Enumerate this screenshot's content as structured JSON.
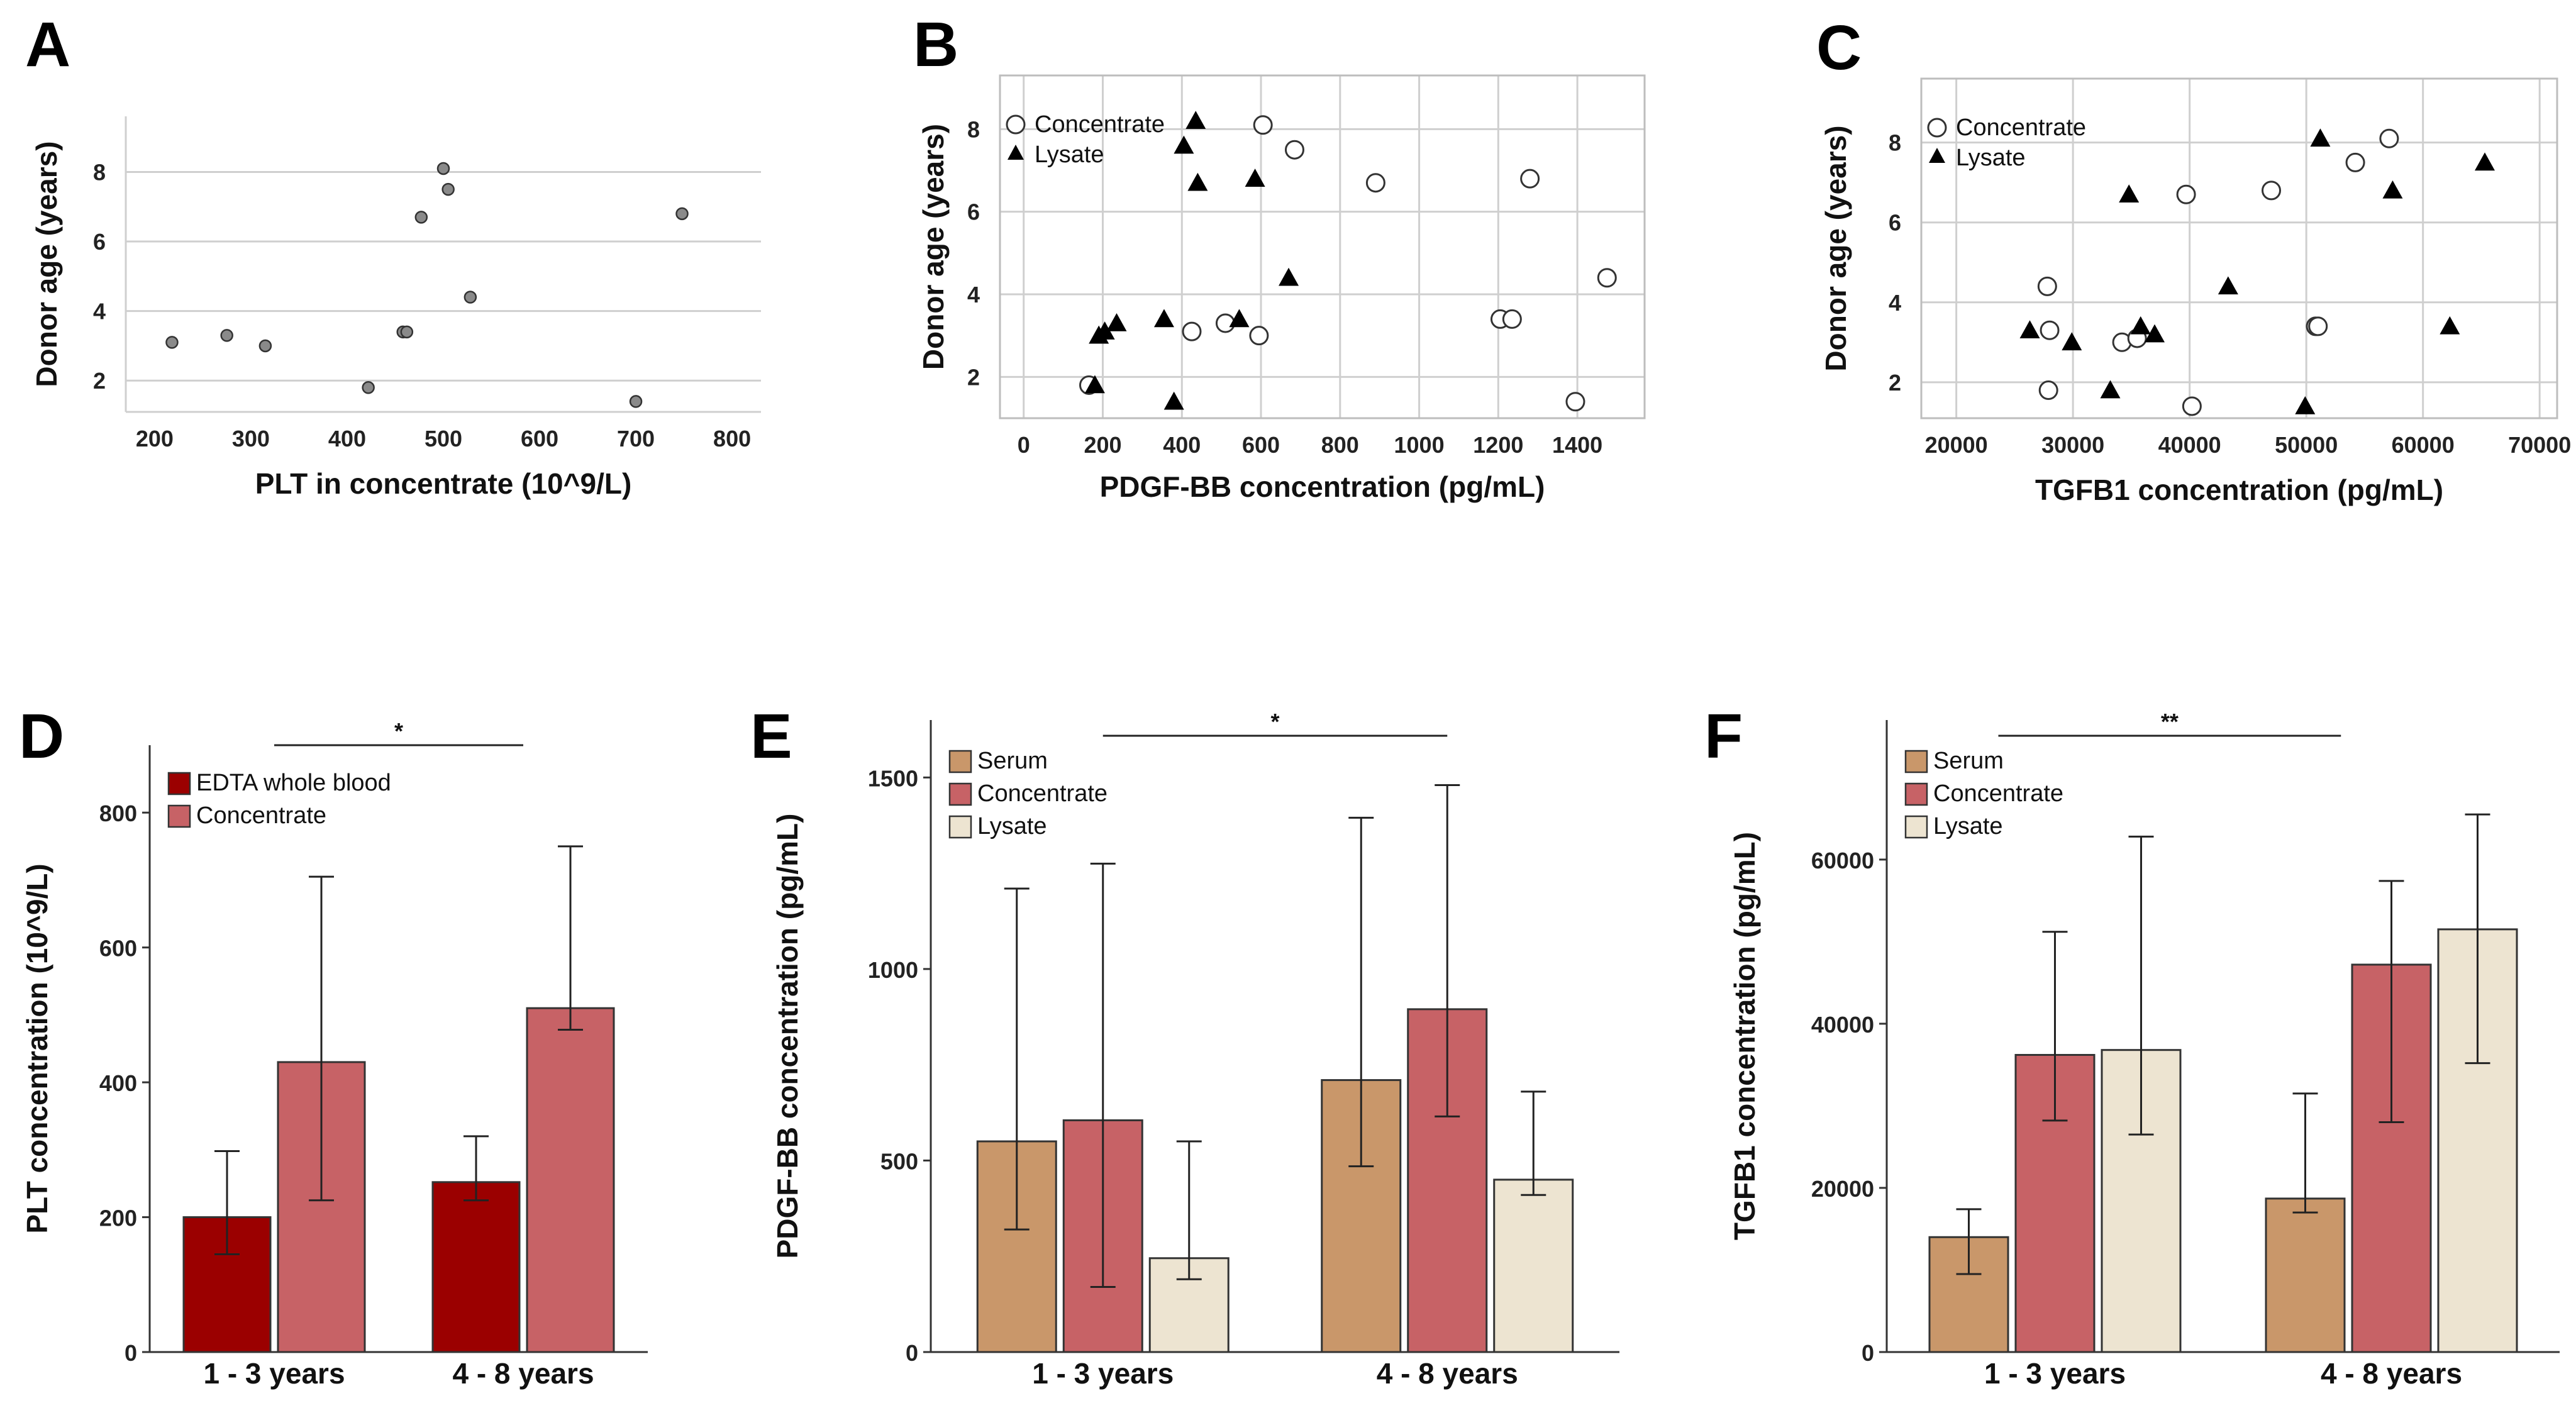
{
  "panels": {
    "A": {
      "letter": "A",
      "chart_data": {
        "type": "scatter",
        "xlabel": "PLT in concentrate (10^9/L)",
        "ylabel": "Donor age (years)",
        "xlim": [
          170,
          830
        ],
        "ylim": [
          1.1,
          9.6
        ],
        "xticks": [
          200,
          300,
          400,
          500,
          600,
          700,
          800
        ],
        "yticks": [
          2,
          4,
          6,
          8
        ],
        "series": [
          {
            "name": "Concentrate",
            "points": [
              [
                218,
                3.1
              ],
              [
                275,
                3.3
              ],
              [
                315,
                3.0
              ],
              [
                422,
                1.8
              ],
              [
                458,
                3.4
              ],
              [
                462,
                3.4
              ],
              [
                477,
                6.7
              ],
              [
                500,
                8.1
              ],
              [
                505,
                7.5
              ],
              [
                528,
                4.4
              ],
              [
                700,
                1.4
              ],
              [
                748,
                6.8
              ]
            ]
          }
        ]
      }
    },
    "B": {
      "letter": "B",
      "chart_data": {
        "type": "scatter",
        "xlabel": "PDGF-BB concentration (pg/mL)",
        "ylabel": "Donor age (years)",
        "xlim": [
          -60,
          1570
        ],
        "ylim": [
          1.0,
          9.3
        ],
        "xticks": [
          0,
          200,
          400,
          600,
          800,
          1000,
          1200,
          1400
        ],
        "yticks": [
          2,
          4,
          6,
          8
        ],
        "legend": [
          "Concentrate",
          "Lysate"
        ],
        "series": [
          {
            "name": "Concentrate",
            "marker": "open-circle",
            "points": [
              [
                165,
                1.8
              ],
              [
                425,
                3.1
              ],
              [
                510,
                3.3
              ],
              [
                595,
                3.0
              ],
              [
                605,
                8.1
              ],
              [
                685,
                7.5
              ],
              [
                890,
                6.7
              ],
              [
                1205,
                3.4
              ],
              [
                1235,
                3.4
              ],
              [
                1280,
                6.8
              ],
              [
                1395,
                1.4
              ],
              [
                1475,
                4.4
              ]
            ]
          },
          {
            "name": "Lysate",
            "marker": "filled-triangle",
            "points": [
              [
                180,
                1.8
              ],
              [
                190,
                3.0
              ],
              [
                205,
                3.1
              ],
              [
                235,
                3.3
              ],
              [
                355,
                3.4
              ],
              [
                380,
                1.4
              ],
              [
                405,
                7.6
              ],
              [
                435,
                8.2
              ],
              [
                440,
                6.7
              ],
              [
                545,
                3.4
              ],
              [
                585,
                6.8
              ],
              [
                670,
                4.4
              ]
            ]
          }
        ]
      }
    },
    "C": {
      "letter": "C",
      "chart_data": {
        "type": "scatter",
        "xlabel": "TGFB1 concentration (pg/mL)",
        "ylabel": "Donor age (years)",
        "xlim": [
          17000,
          71500
        ],
        "ylim": [
          1.1,
          9.6
        ],
        "xticks": [
          20000,
          30000,
          40000,
          50000,
          60000,
          70000
        ],
        "yticks": [
          2,
          4,
          6,
          8
        ],
        "legend": [
          "Concentrate",
          "Lysate"
        ],
        "series": [
          {
            "name": "Concentrate",
            "marker": "open-circle",
            "points": [
              [
                27800,
                4.4
              ],
              [
                28000,
                3.3
              ],
              [
                27900,
                1.8
              ],
              [
                34200,
                3.0
              ],
              [
                35500,
                3.1
              ],
              [
                39700,
                6.7
              ],
              [
                40200,
                1.4
              ],
              [
                47000,
                6.8
              ],
              [
                50800,
                3.4
              ],
              [
                51000,
                3.4
              ],
              [
                54200,
                7.5
              ],
              [
                57100,
                8.1
              ]
            ]
          },
          {
            "name": "Lysate",
            "marker": "filled-triangle",
            "points": [
              [
                26300,
                3.3
              ],
              [
                29900,
                3.0
              ],
              [
                33200,
                1.8
              ],
              [
                34800,
                6.7
              ],
              [
                35800,
                3.4
              ],
              [
                37000,
                3.2
              ],
              [
                43300,
                4.4
              ],
              [
                49900,
                1.4
              ],
              [
                51200,
                8.1
              ],
              [
                57400,
                6.8
              ],
              [
                62300,
                3.4
              ],
              [
                65300,
                7.5
              ]
            ]
          }
        ]
      }
    },
    "D": {
      "letter": "D",
      "chart_data": {
        "type": "bar",
        "ylabel": "PLT concentration (10^9/L)",
        "categories": [
          "1 - 3 years",
          "4 - 8 years"
        ],
        "ylim": [
          0,
          900
        ],
        "yticks": [
          0,
          200,
          400,
          600,
          800
        ],
        "series": [
          {
            "name": "EDTA whole blood",
            "color": "#9b0000",
            "values": [
              200,
              252
            ],
            "err_low": [
              145,
              225
            ],
            "err_high": [
              298,
              320
            ]
          },
          {
            "name": "Concentrate",
            "color": "#c76266",
            "values": [
              430,
              510
            ],
            "err_low": [
              225,
              478
            ],
            "err_high": [
              705,
              750
            ]
          }
        ],
        "significance": {
          "label": "*",
          "from": 0,
          "to": 1
        }
      }
    },
    "E": {
      "letter": "E",
      "chart_data": {
        "type": "bar",
        "ylabel": "PDGF-BB concentration (pg/mL)",
        "categories": [
          "1 - 3 years",
          "4 - 8 years"
        ],
        "ylim": [
          0,
          1650
        ],
        "yticks": [
          0,
          500,
          1000,
          1500
        ],
        "series": [
          {
            "name": "Serum",
            "color": "#c9976a",
            "values": [
              550,
              710
            ],
            "err_low": [
              320,
              485
            ],
            "err_high": [
              1210,
              1395
            ]
          },
          {
            "name": "Concentrate",
            "color": "#c76266",
            "values": [
              605,
              895
            ],
            "err_low": [
              170,
              615
            ],
            "err_high": [
              1275,
              1480
            ]
          },
          {
            "name": "Lysate",
            "color": "#ede4d1",
            "values": [
              245,
              450
            ],
            "err_low": [
              190,
              410
            ],
            "err_high": [
              550,
              680
            ]
          }
        ],
        "significance": {
          "label": "*",
          "from": 0,
          "to": 1
        }
      }
    },
    "F": {
      "letter": "F",
      "chart_data": {
        "type": "bar",
        "ylabel": "TGFB1 concentration (pg/mL)",
        "categories": [
          "1 - 3 years",
          "4 - 8 years"
        ],
        "ylim": [
          0,
          77000
        ],
        "yticks": [
          0,
          20000,
          40000,
          60000
        ],
        "series": [
          {
            "name": "Serum",
            "color": "#c9976a",
            "values": [
              14000,
              18700
            ],
            "err_low": [
              9500,
              17000
            ],
            "err_high": [
              17400,
              31500
            ]
          },
          {
            "name": "Concentrate",
            "color": "#c76266",
            "values": [
              36200,
              47200
            ],
            "err_low": [
              28200,
              28000
            ],
            "err_high": [
              51200,
              57400
            ]
          },
          {
            "name": "Lysate",
            "color": "#ede4d1",
            "values": [
              36800,
              51500
            ],
            "err_low": [
              26500,
              35200
            ],
            "err_high": [
              62800,
              65500
            ]
          }
        ],
        "significance": {
          "label": "**",
          "from": 0,
          "to": 0.5
        }
      }
    }
  }
}
